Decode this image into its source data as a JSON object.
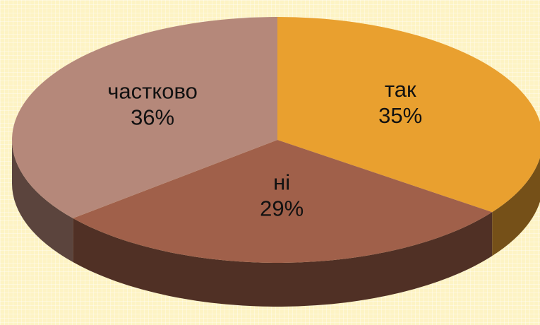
{
  "chart_data": {
    "type": "pie",
    "categories": [
      "так",
      "ні",
      "частково"
    ],
    "values": [
      35,
      29,
      36
    ],
    "value_labels": [
      "35%",
      "29%",
      "36%"
    ],
    "colors": [
      "#e9a02f",
      "#a0604a",
      "#b5887a"
    ]
  }
}
